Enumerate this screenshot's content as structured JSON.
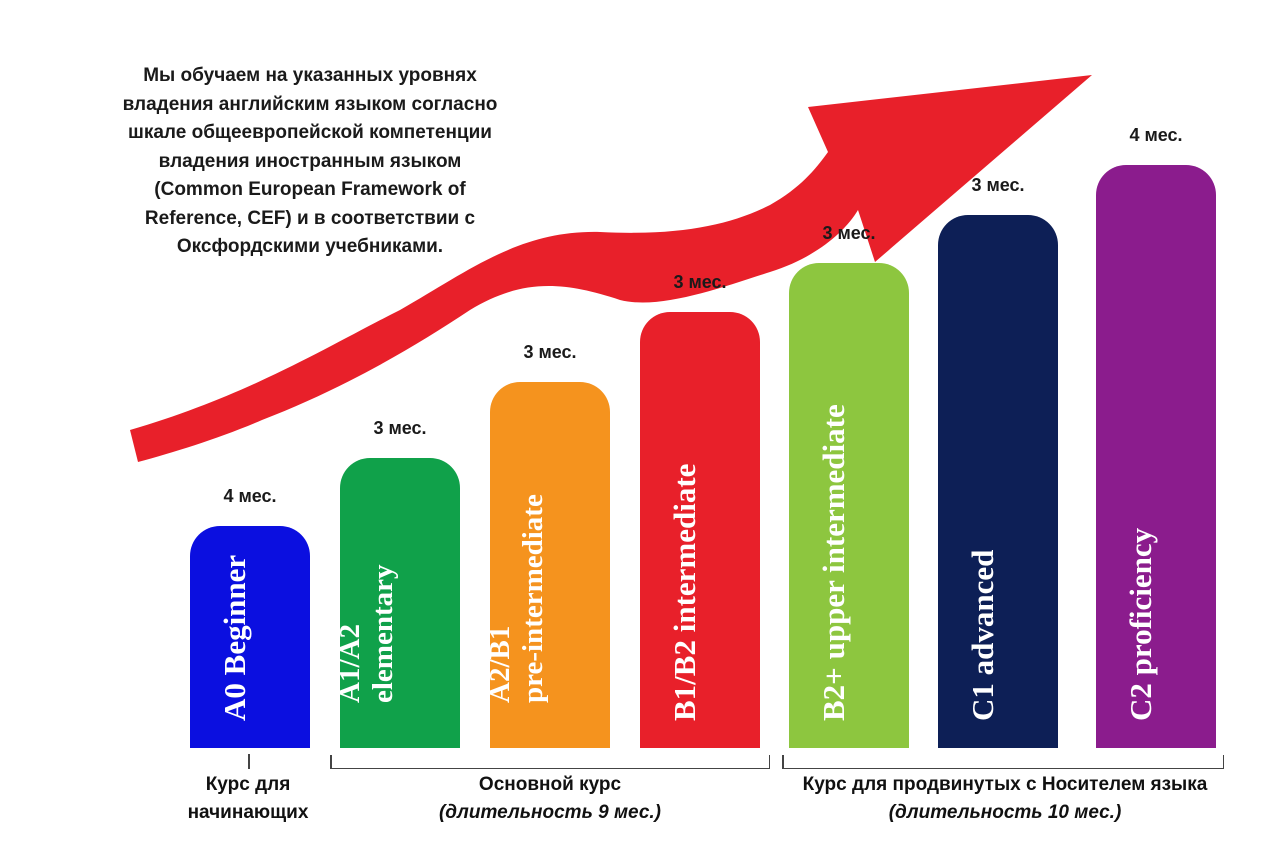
{
  "intro": "Мы обучаем на указанных уровнях\nвладения английским языком согласно\nшкале общеевропейской компетенции\nвладения иностранным языком\n(Common European Framework of\nReference, CEF) и в соответствии с\nОксфордскими учебниками.",
  "levels": [
    {
      "label": "A0 Beginner",
      "duration": "4 мес.",
      "color": "#0b0fe0"
    },
    {
      "label": "A1/A2\nelementary",
      "duration": "3 мес.",
      "color": "#10a14a"
    },
    {
      "label": "A2/B1\npre-intermediate",
      "duration": "3 мес.",
      "color": "#f5931e"
    },
    {
      "label": "B1/B2 intermediate",
      "duration": "3 мес.",
      "color": "#e8202a"
    },
    {
      "label": "B2+ upper intermediate",
      "duration": "3 мес.",
      "color": "#8dc63f"
    },
    {
      "label": "C1 advanced",
      "duration": "3 мес.",
      "color": "#0d1f56"
    },
    {
      "label": "C2 proficiency",
      "duration": "4 мес.",
      "color": "#8b1c8d"
    }
  ],
  "groups": {
    "beginners": {
      "title": "Курс для\nначинающих"
    },
    "main": {
      "title": "Основной курс",
      "subtitle": "(длительность 9 мес.)"
    },
    "advanced": {
      "title": "Курс для продвинутых с Носителем языка",
      "subtitle": "(длительность 10 мес.)"
    }
  },
  "arrow_color": "#e8202a"
}
